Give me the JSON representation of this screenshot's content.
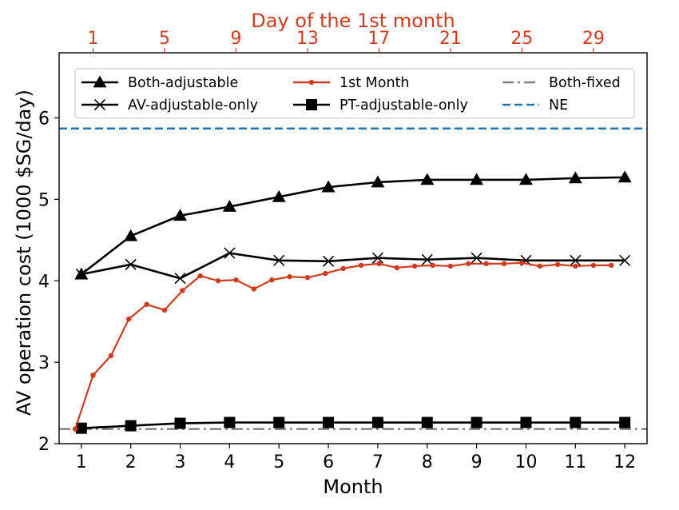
{
  "chart_data": {
    "type": "line",
    "xlabel": "Month",
    "ylabel": "AV operation cost (1000 $SG/day)",
    "x2label": "Day of the 1st month",
    "xlim": [
      0.55,
      12.45
    ],
    "ylim": [
      2.0,
      6.8
    ],
    "x2lim": [
      -0.9,
      32.0
    ],
    "x_ticks": [
      1,
      2,
      3,
      4,
      5,
      6,
      7,
      8,
      9,
      10,
      11,
      12
    ],
    "x_tick_labels": [
      "1",
      "2",
      "3",
      "4",
      "5",
      "6",
      "7",
      "8",
      "9",
      "10",
      "11",
      "12"
    ],
    "y_ticks": [
      2,
      3,
      4,
      5,
      6
    ],
    "y_tick_labels": [
      "2",
      "3",
      "4",
      "5",
      "6"
    ],
    "x2_ticks": [
      1,
      5,
      9,
      13,
      17,
      21,
      25,
      29
    ],
    "x2_tick_labels": [
      "1",
      "5",
      "9",
      "13",
      "17",
      "21",
      "25",
      "29"
    ],
    "grid": false,
    "legend_position": "top",
    "series": [
      {
        "name": "Both-adjustable",
        "axis": "month",
        "marker": "triangle",
        "color": "#000000",
        "x": [
          1,
          2,
          3,
          4,
          5,
          6,
          7,
          8,
          9,
          10,
          11,
          12
        ],
        "values": [
          4.08,
          4.55,
          4.8,
          4.91,
          5.03,
          5.15,
          5.21,
          5.24,
          5.24,
          5.24,
          5.26,
          5.27
        ]
      },
      {
        "name": "AV-adjustable-only",
        "axis": "month",
        "marker": "x",
        "color": "#000000",
        "x": [
          1,
          2,
          3,
          4,
          5,
          6,
          7,
          8,
          9,
          10,
          11,
          12
        ],
        "values": [
          4.08,
          4.2,
          4.03,
          4.34,
          4.25,
          4.24,
          4.28,
          4.26,
          4.28,
          4.25,
          4.25,
          4.25
        ]
      },
      {
        "name": "1st Month",
        "axis": "day",
        "marker": "dot",
        "color": "#d03b1d",
        "x": [
          0,
          1,
          2,
          3,
          4,
          5,
          6,
          7,
          8,
          9,
          10,
          11,
          12,
          13,
          14,
          15,
          16,
          17,
          18,
          19,
          20,
          21,
          22,
          23,
          24,
          25,
          26,
          27,
          28,
          29,
          30
        ],
        "values": [
          2.18,
          2.84,
          3.08,
          3.53,
          3.71,
          3.64,
          3.88,
          4.06,
          4.0,
          4.01,
          3.9,
          4.01,
          4.05,
          4.04,
          4.09,
          4.15,
          4.19,
          4.21,
          4.16,
          4.18,
          4.19,
          4.18,
          4.21,
          4.21,
          4.21,
          4.22,
          4.18,
          4.2,
          4.18,
          4.19,
          4.19
        ]
      },
      {
        "name": "PT-adjustable-only",
        "axis": "month",
        "marker": "square",
        "color": "#000000",
        "x": [
          1,
          2,
          3,
          4,
          5,
          6,
          7,
          8,
          9,
          10,
          11,
          12
        ],
        "values": [
          2.19,
          2.22,
          2.25,
          2.26,
          2.26,
          2.26,
          2.26,
          2.26,
          2.26,
          2.26,
          2.26,
          2.26
        ]
      },
      {
        "name": "Both-fixed",
        "axis": "month",
        "style": "dashdot-hline",
        "color": "#7f7f7f",
        "value": 2.18
      },
      {
        "name": "NE",
        "axis": "month",
        "style": "dashed-hline",
        "color": "#1f77b4",
        "value": 5.87
      }
    ],
    "legend": [
      {
        "label": "Both-adjustable",
        "marker": "triangle",
        "color": "#000000",
        "line": "solid"
      },
      {
        "label": "AV-adjustable-only",
        "marker": "x",
        "color": "#000000",
        "line": "solid"
      },
      {
        "label": "1st Month",
        "marker": "dot",
        "color": "#d03b1d",
        "line": "solid"
      },
      {
        "label": "PT-adjustable-only",
        "marker": "square",
        "color": "#000000",
        "line": "solid"
      },
      {
        "label": "Both-fixed",
        "marker": "none",
        "color": "#7f7f7f",
        "line": "dashdot"
      },
      {
        "label": "NE",
        "marker": "none",
        "color": "#1f77b4",
        "line": "dashed"
      }
    ],
    "colors": {
      "axis": "#000000",
      "top_axis": "#d03b1d",
      "ne": "#1f77b4",
      "both_fixed": "#7f7f7f"
    }
  }
}
